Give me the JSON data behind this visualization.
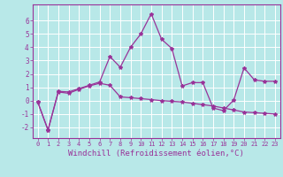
{
  "background_color": "#b8e8e8",
  "grid_color": "#ffffff",
  "line_color": "#993399",
  "marker_color": "#993399",
  "xlabel": "Windchill (Refroidissement éolien,°C)",
  "xlabel_fontsize": 6.5,
  "xtick_fontsize": 5.0,
  "ytick_fontsize": 5.5,
  "ylim": [
    -2.8,
    7.2
  ],
  "xlim": [
    -0.5,
    23.5
  ],
  "line1_x": [
    0,
    1,
    2,
    3,
    4,
    5,
    6,
    7,
    8,
    9,
    10,
    11,
    12,
    13,
    14,
    15,
    16,
    17,
    18,
    19,
    20,
    21,
    22,
    23
  ],
  "line1_y": [
    -0.1,
    -2.2,
    0.7,
    0.65,
    0.9,
    1.15,
    1.4,
    3.3,
    2.5,
    4.0,
    5.0,
    6.5,
    4.6,
    3.9,
    1.1,
    1.35,
    1.35,
    -0.55,
    -0.75,
    0.05,
    2.45,
    1.55,
    1.45,
    1.45
  ],
  "line2_x": [
    0,
    1,
    2,
    3,
    4,
    5,
    6,
    7,
    8,
    9,
    10,
    11,
    12,
    13,
    14,
    15,
    16,
    17,
    18,
    19,
    20,
    21,
    22,
    23
  ],
  "line2_y": [
    -0.1,
    -2.2,
    0.65,
    0.55,
    0.85,
    1.1,
    1.3,
    1.15,
    0.28,
    0.22,
    0.15,
    0.08,
    0.0,
    -0.05,
    -0.1,
    -0.2,
    -0.3,
    -0.4,
    -0.55,
    -0.7,
    -0.85,
    -0.9,
    -0.95,
    -1.0
  ]
}
